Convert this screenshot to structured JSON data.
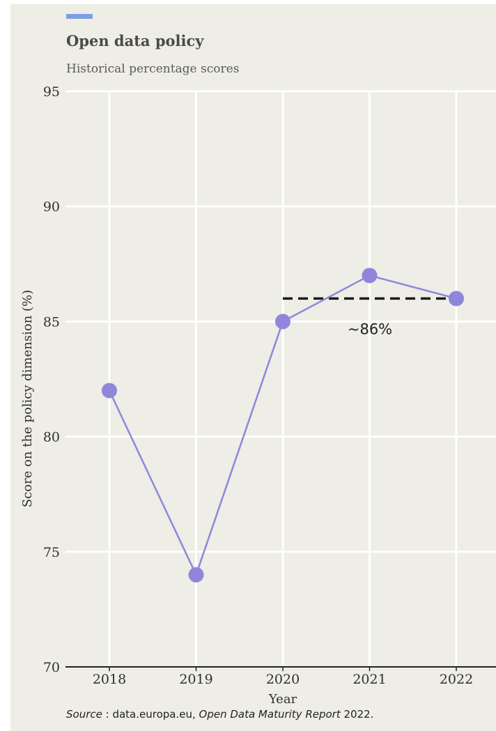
{
  "colors": {
    "accent_bar": "#7ba0e0",
    "series": "#8f86dc",
    "grid": "#ffffff",
    "background": "#eeede6"
  },
  "chart_data": {
    "type": "line",
    "title": "Open data policy",
    "subtitle": "Historical percentage scores",
    "xlabel": "Year",
    "ylabel": "Score on the policy dimension (%)",
    "x": [
      "2018",
      "2019",
      "2020",
      "2021",
      "2022"
    ],
    "series": [
      {
        "values": [
          82,
          74,
          85,
          87,
          86
        ]
      }
    ],
    "ylim": [
      70,
      95
    ],
    "yticks": [
      70,
      75,
      80,
      85,
      90,
      95
    ],
    "grid": true,
    "annotations": [
      {
        "type": "dashed-hline",
        "y": 86,
        "x_from": "2020",
        "x_to": "2022",
        "label": "~86%"
      }
    ]
  },
  "source": {
    "prefix": "Source",
    "colon": " :  data.europa.eu, ",
    "report": "Open Data Maturity Report",
    "year": " 2022."
  }
}
